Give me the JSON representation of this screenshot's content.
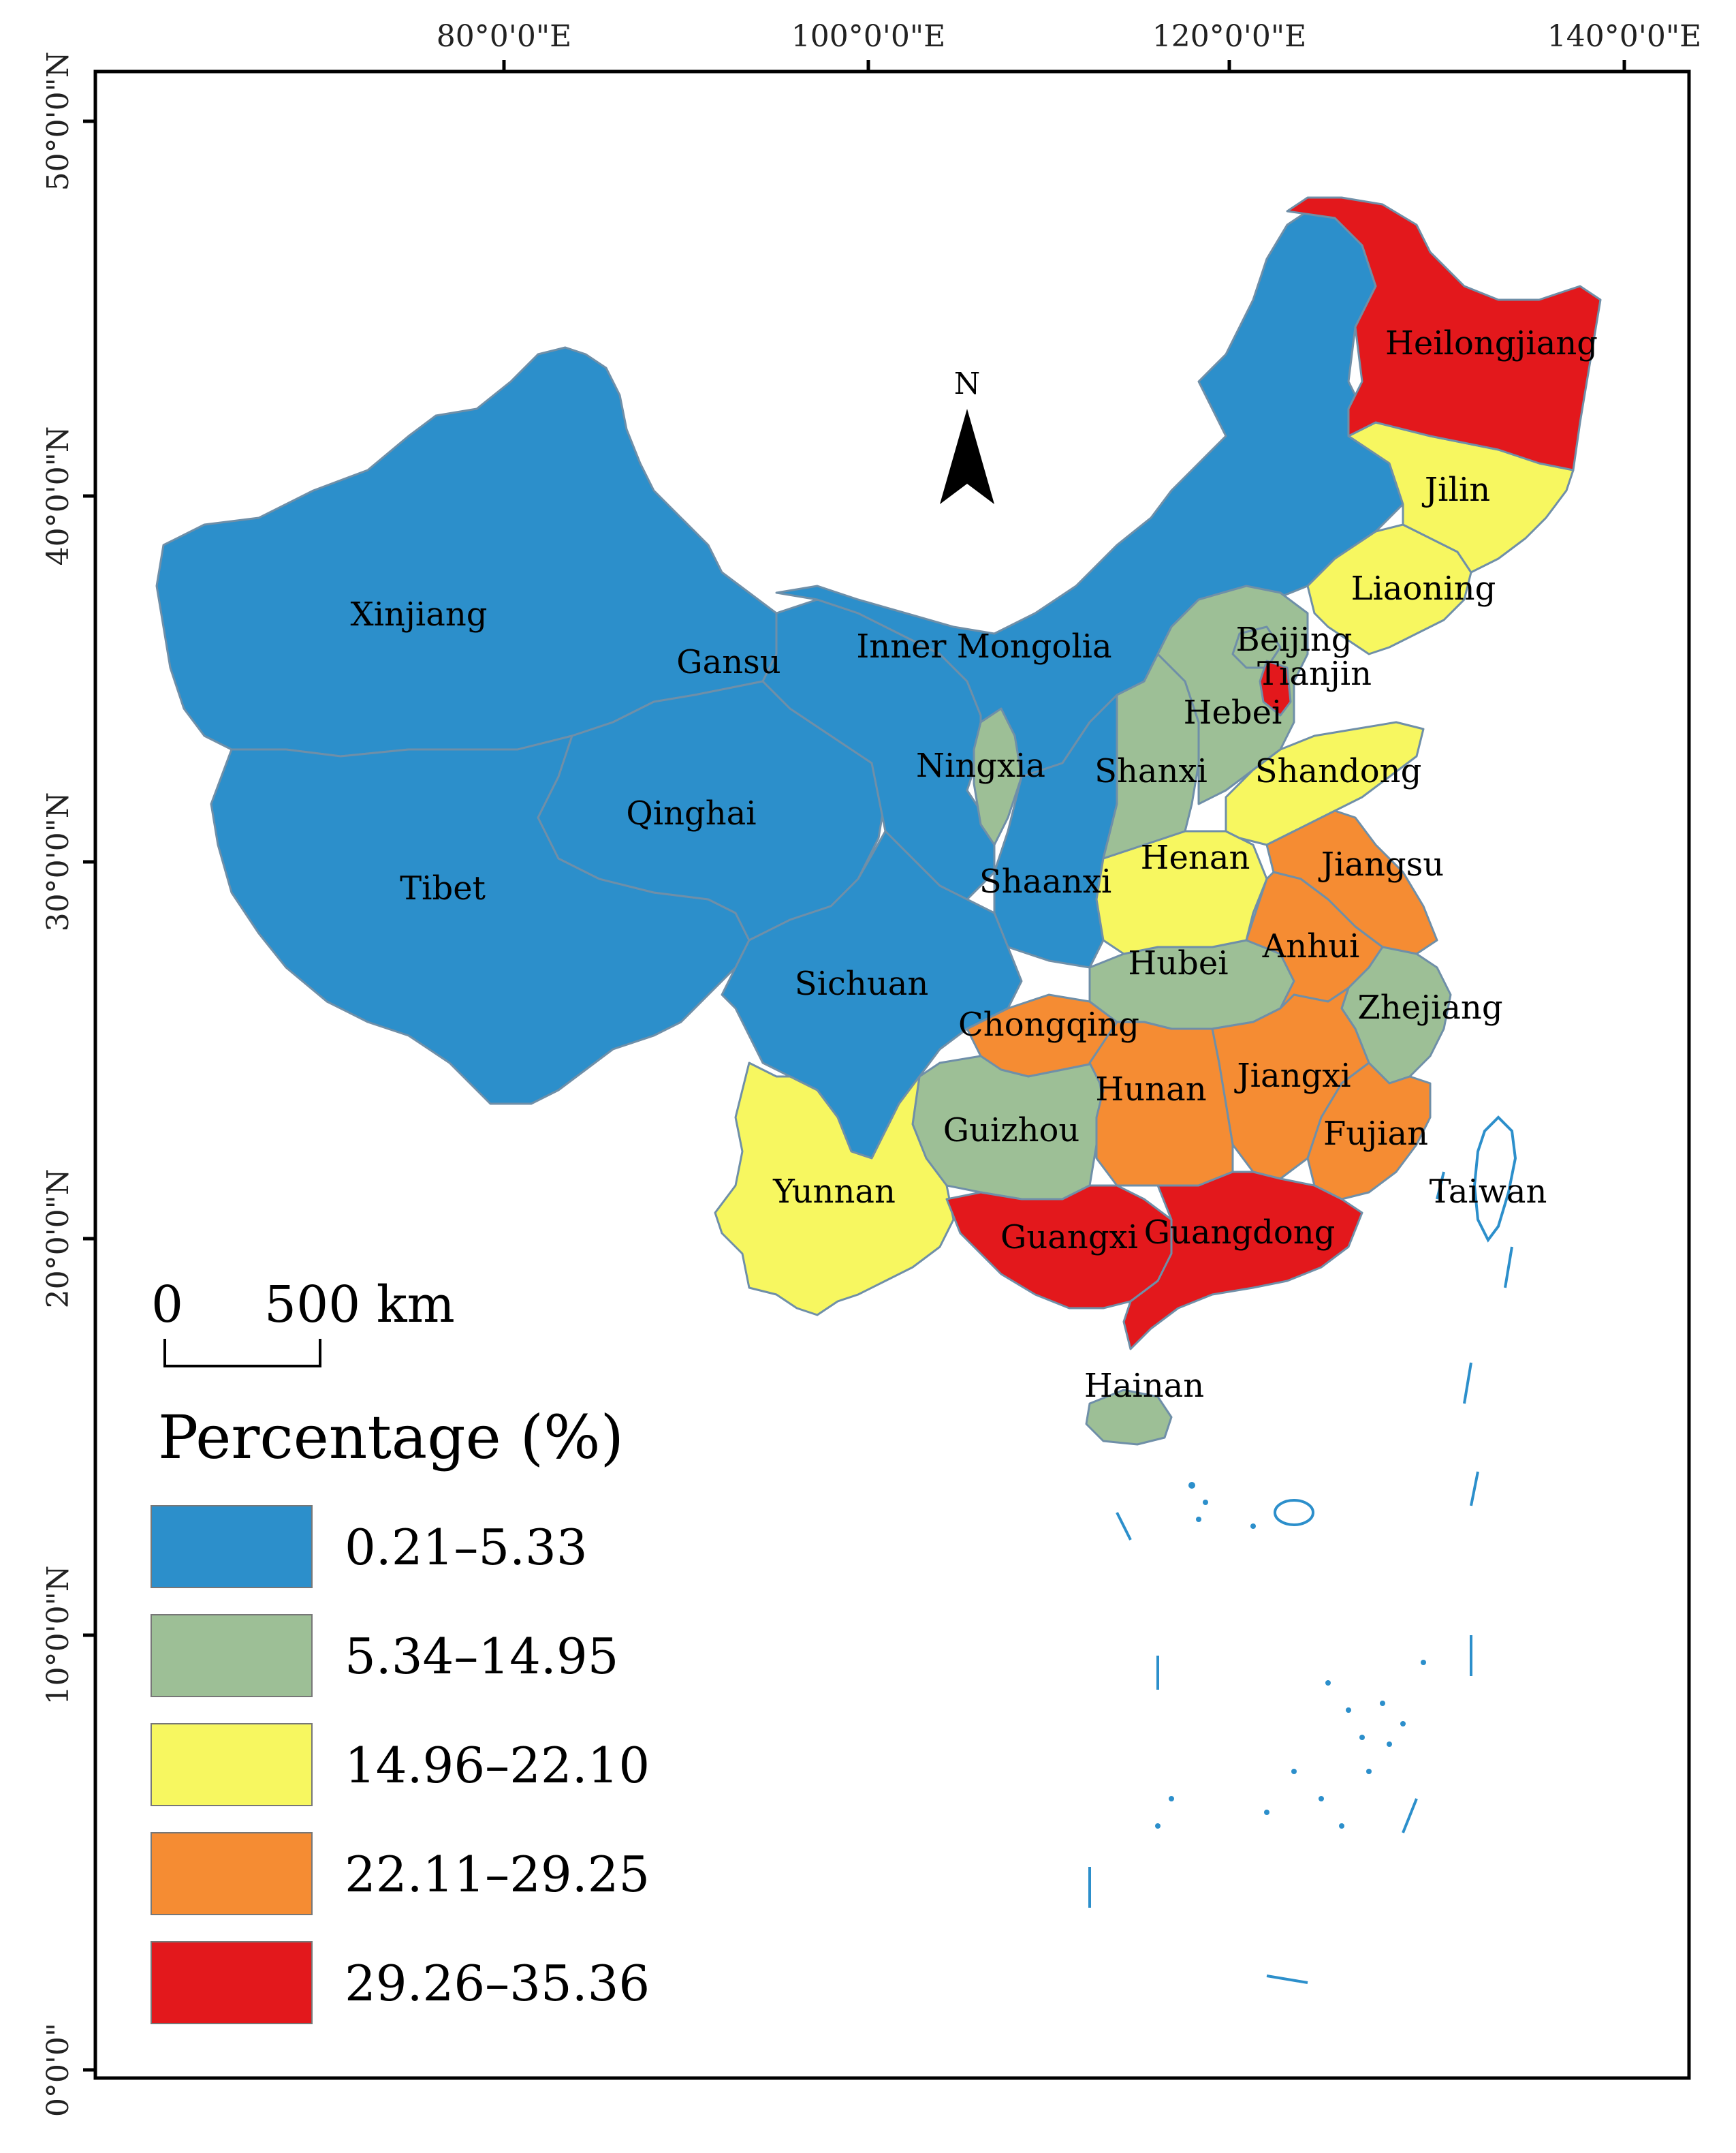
{
  "graticule": {
    "lon_labels": [
      "80°0'0\"E",
      "100°0'0\"E",
      "120°0'0\"E",
      "140°0'0\"E"
    ],
    "lat_labels": [
      "50°0'0\"N",
      "40°0'0\"N",
      "30°0'0\"N",
      "20°0'0\"N",
      "10°0'0\"N",
      "0°0'0\""
    ]
  },
  "north_arrow": {
    "label": "N"
  },
  "scale_bar": {
    "start_label": "0",
    "end_label": "500 km"
  },
  "legend": {
    "title": "Percentage (%)",
    "classes": [
      {
        "range": "0.21–5.33",
        "color": "#2c8fcb"
      },
      {
        "range": "5.34–14.95",
        "color": "#9dbf96"
      },
      {
        "range": "14.96–22.10",
        "color": "#f7f760"
      },
      {
        "range": "22.11–29.25",
        "color": "#f58c33"
      },
      {
        "range": "29.26–35.36",
        "color": "#e3181c"
      }
    ]
  },
  "provinces": [
    {
      "name": "Heilongjiang",
      "class": 4
    },
    {
      "name": "Jilin",
      "class": 2
    },
    {
      "name": "Liaoning",
      "class": 2
    },
    {
      "name": "Beijing",
      "class": 1
    },
    {
      "name": "Tianjin",
      "class": 4
    },
    {
      "name": "Hebei",
      "class": 1
    },
    {
      "name": "Shanxi",
      "class": 1
    },
    {
      "name": "Shandong",
      "class": 2
    },
    {
      "name": "Henan",
      "class": 2
    },
    {
      "name": "Jiangsu",
      "class": 3
    },
    {
      "name": "Anhui",
      "class": 3
    },
    {
      "name": "Zhejiang",
      "class": 1
    },
    {
      "name": "Jiangxi",
      "class": 3
    },
    {
      "name": "Fujian",
      "class": 3
    },
    {
      "name": "Hunan",
      "class": 3
    },
    {
      "name": "Hubei",
      "class": 1
    },
    {
      "name": "Chongqing",
      "class": 3
    },
    {
      "name": "Guizhou",
      "class": 1
    },
    {
      "name": "Yunnan",
      "class": 2
    },
    {
      "name": "Guangxi",
      "class": 4
    },
    {
      "name": "Guangdong",
      "class": 4
    },
    {
      "name": "Hainan",
      "class": 1
    },
    {
      "name": "Taiwan",
      "class": null
    },
    {
      "name": "Xinjiang",
      "class": 0
    },
    {
      "name": "Tibet",
      "class": 0
    },
    {
      "name": "Qinghai",
      "class": 0
    },
    {
      "name": "Gansu",
      "class": 0
    },
    {
      "name": "Inner Mongolia",
      "class": 0
    },
    {
      "name": "Ningxia",
      "class": 1
    },
    {
      "name": "Shaanxi",
      "class": 0
    },
    {
      "name": "Sichuan",
      "class": 0
    }
  ]
}
